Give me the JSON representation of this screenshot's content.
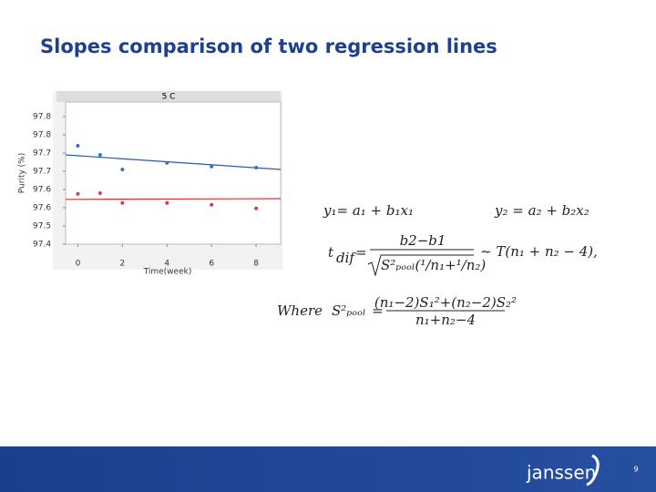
{
  "title": "Slopes comparison of two regression lines",
  "chart_data": {
    "type": "scatter",
    "title": "5 C",
    "x_label": "Time(week)",
    "y_label": "Purity (%)",
    "xlim": [
      -0.55,
      9.1
    ],
    "ylim": [
      97.45,
      97.84
    ],
    "xticks": [
      0,
      2,
      4,
      6,
      8
    ],
    "yticks": [
      {
        "value": 97.8,
        "label": "97.8"
      },
      {
        "value": 97.75,
        "label": "97.8"
      },
      {
        "value": 97.7,
        "label": "97.7"
      },
      {
        "value": 97.65,
        "label": "97.7"
      },
      {
        "value": 97.6,
        "label": "97.6"
      },
      {
        "value": 97.55,
        "label": "97.6"
      },
      {
        "value": 97.5,
        "label": "97.5"
      },
      {
        "value": 97.45,
        "label": "97.4"
      }
    ],
    "series": [
      {
        "color": "#3b6fc4",
        "x": [
          0,
          1,
          2,
          4,
          6,
          8
        ],
        "values": [
          97.72,
          97.695,
          97.655,
          97.673,
          97.663,
          97.66
        ],
        "fit": {
          "color": "#2a5aa8",
          "x": [
            -0.55,
            9.1
          ],
          "values": [
            97.695,
            97.655
          ]
        }
      },
      {
        "color": "#d04050",
        "x": [
          0,
          1,
          2,
          4,
          6,
          8
        ],
        "values": [
          97.588,
          97.59,
          97.563,
          97.563,
          97.558,
          97.548
        ],
        "fit": {
          "color": "#e03030",
          "x": [
            -0.55,
            9.1
          ],
          "values": [
            97.573,
            97.575
          ]
        }
      }
    ]
  },
  "formulas": {
    "eq1": "y₁= a₁ + b₁x₁",
    "eq2": "y₂ = a₂ + b₂x₂",
    "tdif": {
      "lhs": "t",
      "lhs_sub": "dif",
      "eq": "=",
      "numerator": "b2−b1",
      "denominator": "S²ₚₒₒₗ(¹/n₁+¹/n₂)",
      "rhs": "~ T(n₁ + n₂ − 4),"
    },
    "where": {
      "word": "Where",
      "lhs": "S²ₚₒₒₗ",
      "eq": "=",
      "numerator": "(n₁−2)S₁²+(n₂−2)S₂²",
      "denominator": "n₁+n₂−4"
    }
  },
  "footer": {
    "logo": "janssen",
    "page": "9"
  }
}
